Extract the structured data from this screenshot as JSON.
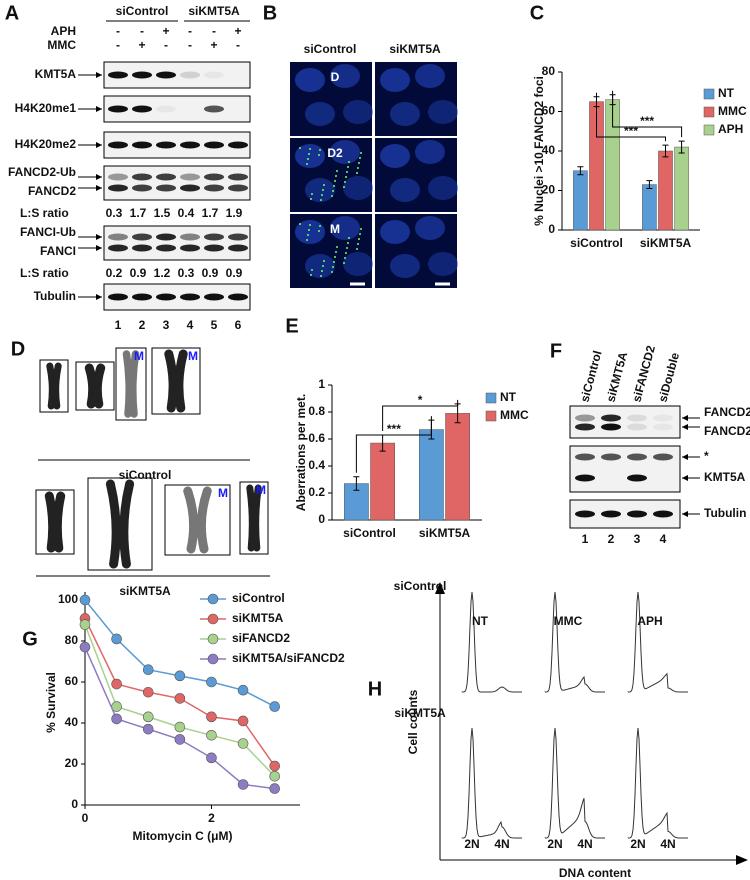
{
  "chart_data": [
    {
      "panel": "C",
      "type": "bar",
      "categories": [
        "siControl",
        "siKMT5A"
      ],
      "series": [
        {
          "name": "NT",
          "color": "#5b9bd5",
          "values": [
            30,
            23
          ],
          "errors": [
            2,
            2
          ]
        },
        {
          "name": "MMC",
          "color": "#e06666",
          "values": [
            65,
            40
          ],
          "errors": [
            2.5,
            3
          ]
        },
        {
          "name": "APH",
          "color": "#a9d18e",
          "values": [
            66,
            42
          ],
          "errors": [
            2.5,
            3
          ]
        }
      ],
      "ylim": [
        0,
        80
      ],
      "yticks": [
        0,
        20,
        40,
        60,
        80
      ],
      "y_label": "% Nuclei >10 FANCD2 foci",
      "annotations": [
        "***",
        "***"
      ],
      "legend": "right"
    },
    {
      "panel": "E",
      "type": "bar",
      "categories": [
        "siControl",
        "siKMT5A"
      ],
      "series": [
        {
          "name": "NT",
          "color": "#5b9bd5",
          "values": [
            0.27,
            0.67
          ],
          "errors": [
            0.05,
            0.07
          ]
        },
        {
          "name": "MMC",
          "color": "#e06666",
          "values": [
            0.57,
            0.79
          ],
          "errors": [
            0.06,
            0.07
          ]
        }
      ],
      "ylim": [
        0,
        1
      ],
      "yticks": [
        0,
        0.2,
        0.4,
        0.6,
        0.8,
        1
      ],
      "y_label": "Aberrations per met.",
      "annotations": [
        "***",
        "*"
      ],
      "legend": "right"
    },
    {
      "panel": "G",
      "type": "line",
      "x": [
        0,
        0.5,
        1,
        1.5,
        2,
        2.5,
        3
      ],
      "series": [
        {
          "name": "siControl",
          "color": "#5b9bd5",
          "values": [
            100,
            81,
            66,
            63,
            60,
            56,
            48
          ]
        },
        {
          "name": "siKMT5A",
          "color": "#e06666",
          "values": [
            91,
            59,
            55,
            52,
            43,
            41,
            19
          ]
        },
        {
          "name": "siFANCD2",
          "color": "#a9d18e",
          "values": [
            88,
            48,
            43,
            38,
            34,
            30,
            14
          ]
        },
        {
          "name": "siKMT5A/siFANCD2",
          "color": "#8e7cc3",
          "values": [
            77,
            42,
            37,
            32,
            23,
            10,
            8
          ]
        }
      ],
      "xlim": [
        0,
        3.4
      ],
      "xticks": [
        0,
        2
      ],
      "ylim": [
        0,
        100
      ],
      "yticks": [
        0,
        20,
        40,
        60,
        80,
        100
      ],
      "x_label": "Mitomycin C (μM)",
      "y_label": "% Survival",
      "legend": "top right"
    }
  ],
  "panel_a": {
    "label": "A",
    "groups": [
      "siControl",
      "siKMT5A"
    ],
    "treatments": [
      {
        "name": "APH",
        "signs": [
          "-",
          "-",
          "+",
          "-",
          "-",
          "+"
        ]
      },
      {
        "name": "MMC",
        "signs": [
          "-",
          "+",
          "-",
          "-",
          "+",
          "-"
        ]
      }
    ],
    "blots": [
      {
        "labels": [
          "KMT5A"
        ]
      },
      {
        "labels": [
          "H4K20me1"
        ]
      },
      {
        "labels": [
          "H4K20me2"
        ]
      },
      {
        "labels": [
          "FANCD2-Ub",
          "FANCD2"
        ],
        "ratio_label": "L:S ratio",
        "ratios": [
          0.3,
          1.7,
          1.5,
          0.4,
          1.7,
          1.9
        ]
      },
      {
        "labels": [
          "FANCI-Ub",
          "FANCI"
        ],
        "ratio_label": "L:S ratio",
        "ratios": [
          0.2,
          0.9,
          1.2,
          0.3,
          0.9,
          0.9
        ]
      },
      {
        "labels": [
          "Tubulin"
        ]
      }
    ],
    "lanes": [
      1,
      2,
      3,
      4,
      5,
      6
    ]
  },
  "panel_b": {
    "label": "B",
    "groups": [
      "siControl",
      "siKMT5A"
    ],
    "rows": [
      "D",
      "D2",
      "M"
    ]
  },
  "panel_d": {
    "label": "D",
    "groups": [
      "siControl",
      "siKMT5A"
    ],
    "box_labels": [
      "M",
      "M",
      "M",
      "M"
    ]
  },
  "panel_f": {
    "label": "F",
    "lanes_header": [
      "siControl",
      "siKMT5A",
      "siFANCD2",
      "siDouble"
    ],
    "blots": [
      {
        "labels": [
          "FANCD2-Ub",
          "FANCD2"
        ]
      },
      {
        "labels": [
          "*",
          "KMT5A"
        ]
      },
      {
        "labels": [
          "Tubulin"
        ]
      }
    ],
    "lanes": [
      1,
      2,
      3,
      4
    ]
  },
  "panel_h": {
    "label": "H",
    "top_group": "siControl",
    "bottom_group": "siKMT5A",
    "conditions": [
      "NT",
      "MMC",
      "APH"
    ],
    "x_markers": [
      "2N",
      "4N"
    ],
    "y_label": "Cell counts",
    "x_label": "DNA content"
  }
}
